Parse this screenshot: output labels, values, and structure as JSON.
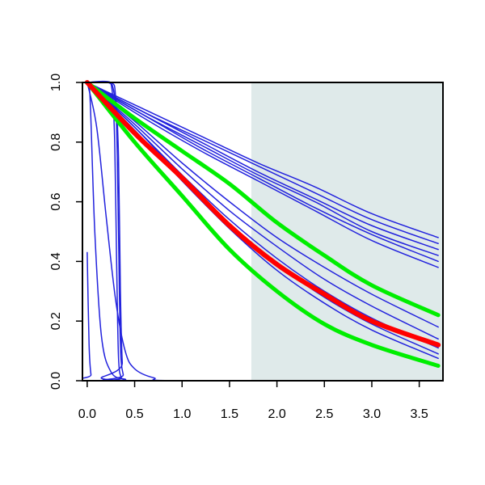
{
  "chart_data": {
    "type": "line",
    "title": "",
    "xlabel": "",
    "ylabel": "",
    "xlim": [
      -0.05,
      3.75
    ],
    "ylim": [
      0,
      1
    ],
    "x_ticks": [
      0.0,
      0.5,
      1.0,
      1.5,
      2.0,
      2.5,
      3.0,
      3.5
    ],
    "x_tick_labels": [
      "0.0",
      "0.5",
      "1.0",
      "1.5",
      "2.0",
      "2.5",
      "3.0",
      "3.5"
    ],
    "y_ticks": [
      0.0,
      0.2,
      0.4,
      0.6,
      0.8,
      1.0
    ],
    "y_tick_labels": [
      "0.0",
      "0.2",
      "0.4",
      "0.6",
      "0.8",
      "1.0"
    ],
    "shaded_region": {
      "x_from": 1.73,
      "x_to": 3.75,
      "color": "#dfeaea"
    },
    "grid": false,
    "legend": "none",
    "series": [
      {
        "color": "#2222dd",
        "width": 1.5,
        "points": [
          [
            0,
            1
          ],
          [
            0.6,
            0.91
          ],
          [
            1.2,
            0.82
          ],
          [
            1.8,
            0.73
          ],
          [
            2.4,
            0.65
          ],
          [
            3.0,
            0.56
          ],
          [
            3.7,
            0.48
          ]
        ]
      },
      {
        "color": "#2222dd",
        "width": 1.5,
        "points": [
          [
            0,
            1
          ],
          [
            0.6,
            0.9
          ],
          [
            1.2,
            0.81
          ],
          [
            1.8,
            0.72
          ],
          [
            2.4,
            0.63
          ],
          [
            3.0,
            0.54
          ],
          [
            3.7,
            0.46
          ]
        ]
      },
      {
        "color": "#2222dd",
        "width": 1.5,
        "points": [
          [
            0,
            1
          ],
          [
            0.6,
            0.9
          ],
          [
            1.2,
            0.8
          ],
          [
            1.8,
            0.7
          ],
          [
            2.4,
            0.61
          ],
          [
            3.0,
            0.52
          ],
          [
            3.7,
            0.44
          ]
        ]
      },
      {
        "color": "#2222dd",
        "width": 1.5,
        "points": [
          [
            0,
            1
          ],
          [
            0.6,
            0.89
          ],
          [
            1.2,
            0.79
          ],
          [
            1.8,
            0.69
          ],
          [
            2.4,
            0.6
          ],
          [
            3.0,
            0.5
          ],
          [
            3.7,
            0.42
          ]
        ]
      },
      {
        "color": "#2222dd",
        "width": 1.5,
        "points": [
          [
            0,
            1
          ],
          [
            0.6,
            0.89
          ],
          [
            1.2,
            0.78
          ],
          [
            1.8,
            0.68
          ],
          [
            2.4,
            0.58
          ],
          [
            3.0,
            0.49
          ],
          [
            3.7,
            0.4
          ]
        ]
      },
      {
        "color": "#2222dd",
        "width": 1.5,
        "points": [
          [
            0,
            1
          ],
          [
            0.6,
            0.88
          ],
          [
            1.2,
            0.77
          ],
          [
            1.8,
            0.67
          ],
          [
            2.4,
            0.57
          ],
          [
            3.0,
            0.47
          ],
          [
            3.7,
            0.38
          ]
        ]
      },
      {
        "color": "#2222dd",
        "width": 1.5,
        "points": [
          [
            0,
            1
          ],
          [
            0.5,
            0.87
          ],
          [
            1.0,
            0.73
          ],
          [
            1.5,
            0.6
          ],
          [
            2.0,
            0.48
          ],
          [
            2.5,
            0.38
          ],
          [
            3.0,
            0.29
          ],
          [
            3.7,
            0.18
          ]
        ]
      },
      {
        "color": "#2222dd",
        "width": 1.5,
        "points": [
          [
            0,
            1
          ],
          [
            0.5,
            0.86
          ],
          [
            1.0,
            0.71
          ],
          [
            1.5,
            0.57
          ],
          [
            2.0,
            0.45
          ],
          [
            2.5,
            0.34
          ],
          [
            3.0,
            0.25
          ],
          [
            3.7,
            0.14
          ]
        ]
      },
      {
        "color": "#2222dd",
        "width": 1.5,
        "points": [
          [
            0,
            1
          ],
          [
            0.5,
            0.85
          ],
          [
            1.0,
            0.69
          ],
          [
            1.5,
            0.54
          ],
          [
            2.0,
            0.41
          ],
          [
            2.5,
            0.3
          ],
          [
            3.0,
            0.21
          ],
          [
            3.7,
            0.11
          ]
        ]
      },
      {
        "color": "#2222dd",
        "width": 1.5,
        "points": [
          [
            0,
            1
          ],
          [
            0.5,
            0.85
          ],
          [
            1.0,
            0.68
          ],
          [
            1.5,
            0.52
          ],
          [
            2.0,
            0.39
          ],
          [
            2.5,
            0.28
          ],
          [
            3.0,
            0.19
          ],
          [
            3.7,
            0.09
          ]
        ]
      },
      {
        "color": "#2222dd",
        "width": 1.5,
        "points": [
          [
            0,
            1
          ],
          [
            0.5,
            0.84
          ],
          [
            1.0,
            0.67
          ],
          [
            1.5,
            0.51
          ],
          [
            2.0,
            0.37
          ],
          [
            2.5,
            0.26
          ],
          [
            3.0,
            0.17
          ],
          [
            3.7,
            0.075
          ]
        ]
      },
      {
        "color": "#2222dd",
        "width": 1.5,
        "points": [
          [
            0,
            1
          ],
          [
            0.1,
            0.85
          ],
          [
            0.2,
            0.55
          ],
          [
            0.3,
            0.27
          ],
          [
            0.4,
            0.1
          ],
          [
            0.5,
            0.04
          ],
          [
            0.7,
            0.01
          ],
          [
            1.0,
            0
          ],
          [
            3.7,
            0
          ]
        ]
      },
      {
        "color": "#2222dd",
        "width": 1.5,
        "points": [
          [
            0,
            1
          ],
          [
            0.03,
            0.95
          ],
          [
            0.08,
            0.5
          ],
          [
            0.15,
            0.15
          ],
          [
            0.25,
            0.03
          ],
          [
            0.4,
            0.005
          ],
          [
            0.6,
            0
          ],
          [
            3.7,
            0
          ]
        ]
      },
      {
        "color": "#2222dd",
        "width": 1.5,
        "points": [
          [
            0,
            0.43
          ],
          [
            0.02,
            0.12
          ],
          [
            0.04,
            0.02
          ],
          [
            0.06,
            0
          ],
          [
            3.7,
            0
          ]
        ]
      },
      {
        "color": "#2222dd",
        "width": 1.5,
        "points": [
          [
            0,
            1
          ],
          [
            0.2,
            1
          ],
          [
            0.26,
            0.98
          ],
          [
            0.29,
            0.8
          ],
          [
            0.31,
            0.4
          ],
          [
            0.33,
            0.08
          ],
          [
            0.36,
            0.01
          ],
          [
            0.4,
            0
          ],
          [
            3.7,
            0
          ]
        ]
      },
      {
        "color": "#2222dd",
        "width": 1.5,
        "points": [
          [
            0,
            1
          ],
          [
            0.22,
            1
          ],
          [
            0.28,
            0.97
          ],
          [
            0.31,
            0.85
          ],
          [
            0.33,
            0.5
          ],
          [
            0.35,
            0.12
          ],
          [
            0.38,
            0.02
          ],
          [
            0.42,
            0
          ],
          [
            3.7,
            0
          ]
        ]
      },
      {
        "color": "#2222dd",
        "width": 1.5,
        "points": [
          [
            0,
            1
          ],
          [
            0.25,
            1
          ],
          [
            0.3,
            0.95
          ],
          [
            0.33,
            0.75
          ],
          [
            0.35,
            0.3
          ],
          [
            0.37,
            0.06
          ],
          [
            0.4,
            0
          ],
          [
            3.7,
            0
          ]
        ]
      },
      {
        "color": "#00ee00",
        "width": 5,
        "points": [
          [
            0,
            1
          ],
          [
            0.5,
            0.88
          ],
          [
            1.0,
            0.77
          ],
          [
            1.5,
            0.66
          ],
          [
            2.0,
            0.53
          ],
          [
            2.5,
            0.42
          ],
          [
            3.0,
            0.32
          ],
          [
            3.7,
            0.22
          ]
        ]
      },
      {
        "color": "#00ee00",
        "width": 5,
        "points": [
          [
            0,
            1
          ],
          [
            0.5,
            0.8
          ],
          [
            1.0,
            0.62
          ],
          [
            1.5,
            0.44
          ],
          [
            2.0,
            0.3
          ],
          [
            2.5,
            0.19
          ],
          [
            3.0,
            0.12
          ],
          [
            3.7,
            0.05
          ]
        ]
      },
      {
        "color": "#ff0000",
        "width": 6,
        "points": [
          [
            0,
            1
          ],
          [
            0.5,
            0.83
          ],
          [
            1.0,
            0.68
          ],
          [
            1.5,
            0.52
          ],
          [
            2.0,
            0.39
          ],
          [
            2.5,
            0.29
          ],
          [
            3.0,
            0.2
          ],
          [
            3.7,
            0.12
          ]
        ]
      }
    ]
  }
}
